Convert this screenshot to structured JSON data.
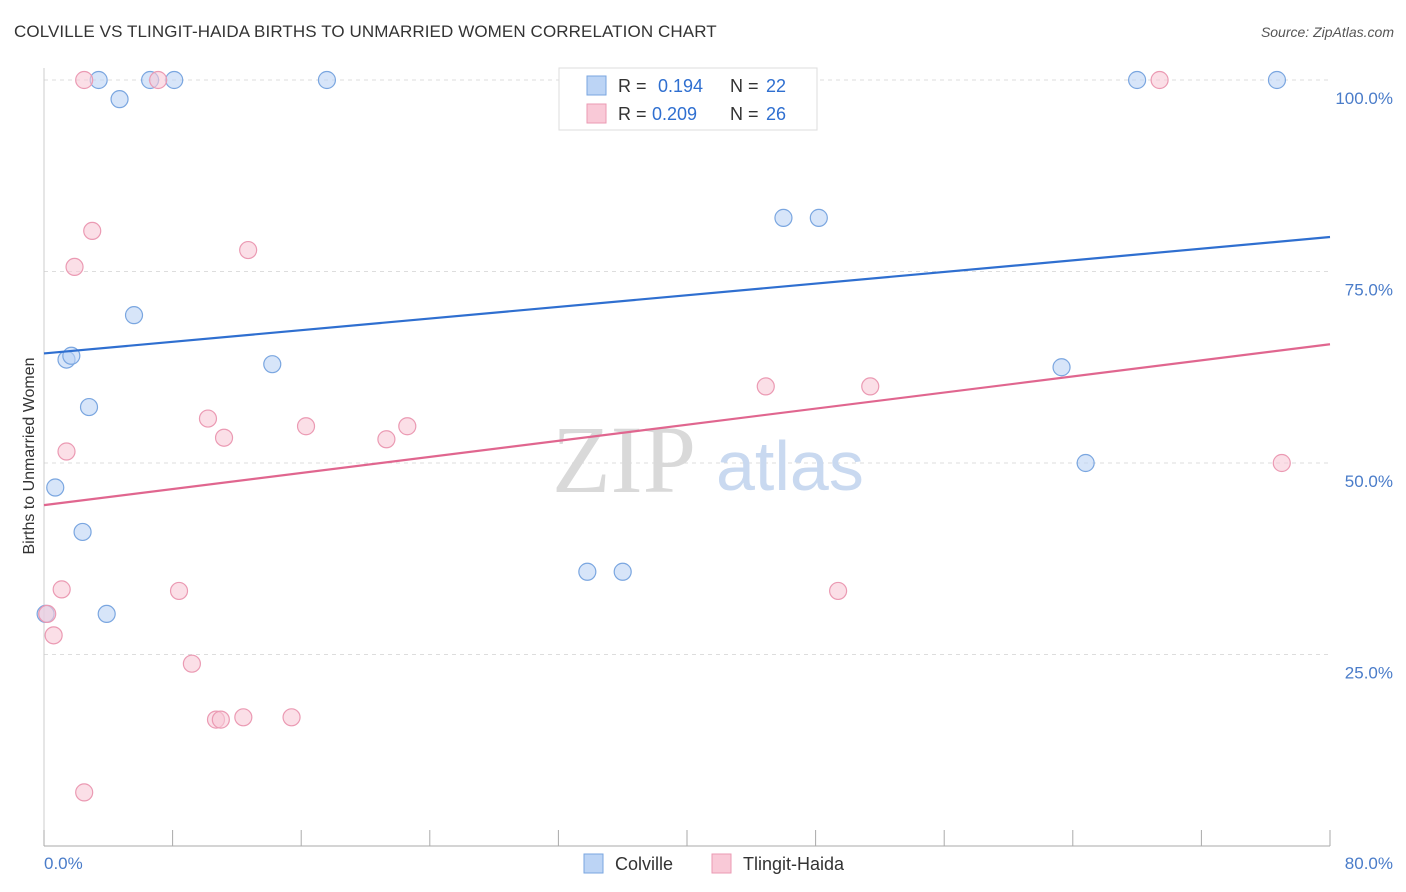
{
  "title": "COLVILLE VS TLINGIT-HAIDA BIRTHS TO UNMARRIED WOMEN CORRELATION CHART",
  "source": "Source: ZipAtlas.com",
  "watermark": {
    "zip": "ZIP",
    "atlas": "atlas"
  },
  "colors": {
    "blue_fill": "#bcd4f5",
    "blue_stroke": "#7aa6e0",
    "blue_line": "#2f6fd0",
    "pink_fill": "#f9c9d7",
    "pink_stroke": "#eb9ab3",
    "pink_line": "#e0668f",
    "grid": "#dddddd",
    "tick_text": "#4a7cc9"
  },
  "chart_data": {
    "type": "scatter",
    "title": "COLVILLE VS TLINGIT-HAIDA BIRTHS TO UNMARRIED WOMEN CORRELATION CHART",
    "xlabel": "",
    "ylabel": "Births to Unmarried Women",
    "xlim": [
      0,
      80
    ],
    "ylim": [
      0,
      102
    ],
    "x_tick_labels": {
      "min": "0.0%",
      "max": "80.0%"
    },
    "y_ticks": [
      {
        "value": 25,
        "label": "25.0%"
      },
      {
        "value": 50,
        "label": "50.0%"
      },
      {
        "value": 75,
        "label": "75.0%"
      },
      {
        "value": 100,
        "label": "100.0%"
      }
    ],
    "legend": [
      {
        "series": "Colville",
        "r_label": "R =",
        "r": "0.194",
        "n_label": "N =",
        "n": "22"
      },
      {
        "series": "Tlingit-Haida",
        "r_label": "R =",
        "r": "0.209",
        "n_label": "N =",
        "n": "26"
      }
    ],
    "series": [
      {
        "name": "Colville",
        "color": "blue",
        "trend": {
          "x0": 0,
          "y0": 64.3,
          "x1": 80,
          "y1": 79.5
        },
        "points": [
          [
            0.1,
            30.3
          ],
          [
            0.7,
            46.8
          ],
          [
            1.4,
            63.5
          ],
          [
            1.7,
            64.0
          ],
          [
            2.4,
            41.0
          ],
          [
            2.8,
            57.3
          ],
          [
            3.4,
            100
          ],
          [
            3.9,
            30.3
          ],
          [
            4.7,
            97.5
          ],
          [
            5.6,
            69.3
          ],
          [
            6.6,
            100
          ],
          [
            8.1,
            100
          ],
          [
            14.2,
            62.9
          ],
          [
            17.6,
            100
          ],
          [
            33.8,
            35.8
          ],
          [
            36.0,
            35.8
          ],
          [
            46.0,
            82.0
          ],
          [
            48.2,
            82.0
          ],
          [
            63.3,
            62.5
          ],
          [
            64.8,
            50.0
          ],
          [
            68.0,
            100
          ],
          [
            76.7,
            100
          ]
        ]
      },
      {
        "name": "Tlingit-Haida",
        "color": "pink",
        "trend": {
          "x0": 0,
          "y0": 44.5,
          "x1": 80,
          "y1": 65.5
        },
        "points": [
          [
            0.2,
            30.3
          ],
          [
            0.6,
            27.5
          ],
          [
            1.1,
            33.5
          ],
          [
            1.4,
            51.5
          ],
          [
            1.9,
            75.6
          ],
          [
            2.5,
            7.0
          ],
          [
            2.5,
            100
          ],
          [
            3.0,
            80.3
          ],
          [
            7.1,
            100
          ],
          [
            8.4,
            33.3
          ],
          [
            9.2,
            23.8
          ],
          [
            10.2,
            55.8
          ],
          [
            10.7,
            16.5
          ],
          [
            11.0,
            16.5
          ],
          [
            11.2,
            53.3
          ],
          [
            12.4,
            16.8
          ],
          [
            12.7,
            77.8
          ],
          [
            15.4,
            16.8
          ],
          [
            16.3,
            54.8
          ],
          [
            21.3,
            53.1
          ],
          [
            22.6,
            54.8
          ],
          [
            44.9,
            60.0
          ],
          [
            49.4,
            33.3
          ],
          [
            51.4,
            60.0
          ],
          [
            69.4,
            100
          ],
          [
            77.0,
            50.0
          ]
        ]
      }
    ]
  }
}
